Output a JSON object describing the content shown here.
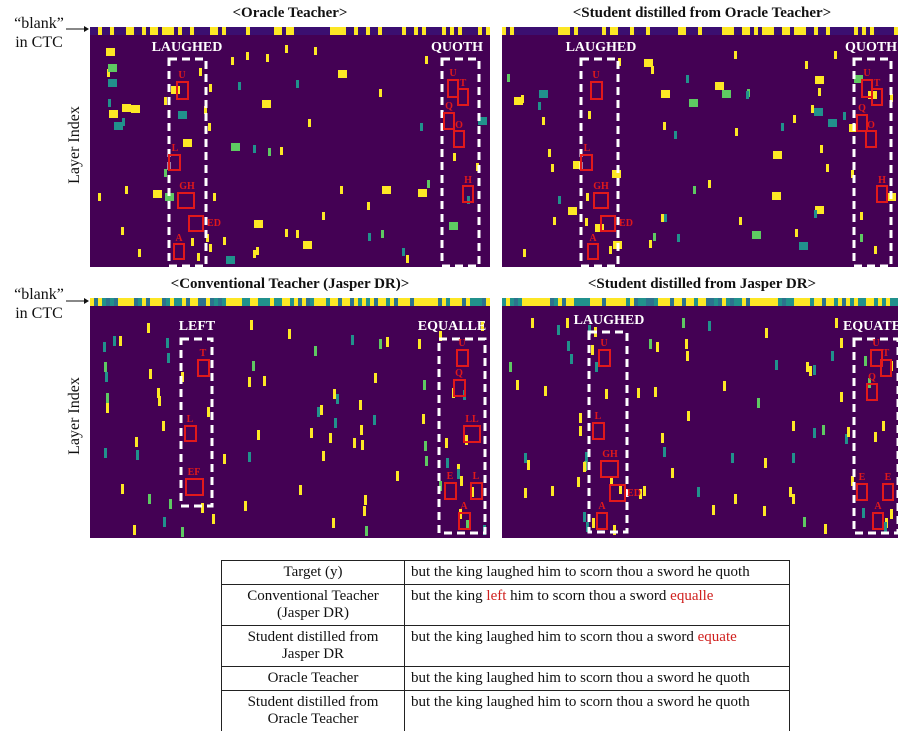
{
  "labels": {
    "blank_line1": "“blank”",
    "blank_line2": "in CTC",
    "layer_index": "Layer Index"
  },
  "panels": [
    {
      "id": "p1",
      "title": "<Oracle Teacher>",
      "words": [
        "LAUGHED",
        "QUOTH"
      ],
      "letters": [
        "U",
        "L",
        "GH",
        "ED",
        "A",
        "U",
        "T",
        "Q",
        "O",
        "H"
      ]
    },
    {
      "id": "p2",
      "title": "<Student distilled from Oracle Teacher>",
      "words": [
        "LAUGHED",
        "QUOTH"
      ],
      "letters": [
        "U",
        "L",
        "GH",
        "ED",
        "A",
        "U",
        "T",
        "Q",
        "O",
        "H"
      ]
    },
    {
      "id": "p3",
      "title": "<Conventional Teacher (Jasper DR)>",
      "words": [
        "LEFT",
        "EQUALLE"
      ],
      "letters": [
        "T",
        "L",
        "EF",
        "U",
        "Q",
        "LL",
        "E",
        "L",
        "A"
      ]
    },
    {
      "id": "p4",
      "title": "<Student distilled from Jasper DR>",
      "words": [
        "LAUGHED",
        "EQUATE"
      ],
      "letters": [
        "U",
        "L",
        "GH",
        "ED",
        "A",
        "U",
        "T",
        "Q",
        "E",
        "E",
        "A"
      ]
    }
  ],
  "colors": {
    "background": "#440154",
    "active": "#fde725",
    "mid": "#21918c",
    "box_red": "#e0191b",
    "error_text": "#d0201e"
  },
  "table": {
    "rows": [
      {
        "label": "Target (y)",
        "pre": "but the king laughed him to scorn thou a sword he quoth",
        "err": "",
        "mid": "",
        "err2": ""
      },
      {
        "label": "Conventional Teacher (Jasper DR)",
        "pre": "but the king ",
        "err": "left",
        "mid": " him to scorn thou a sword ",
        "err2": "equalle"
      },
      {
        "label": "Student distilled from Jasper DR",
        "pre": "but the king laughed him to scorn thou a sword ",
        "err": "equate",
        "mid": "",
        "err2": ""
      },
      {
        "label": "Oracle Teacher",
        "pre": "but the king laughed him to scorn thou a sword he quoth",
        "err": "",
        "mid": "",
        "err2": ""
      },
      {
        "label": "Student distilled from Oracle Teacher",
        "pre": "but the king laughed him to scorn thou a sword he quoth",
        "err": "",
        "mid": "",
        "err2": ""
      }
    ]
  }
}
